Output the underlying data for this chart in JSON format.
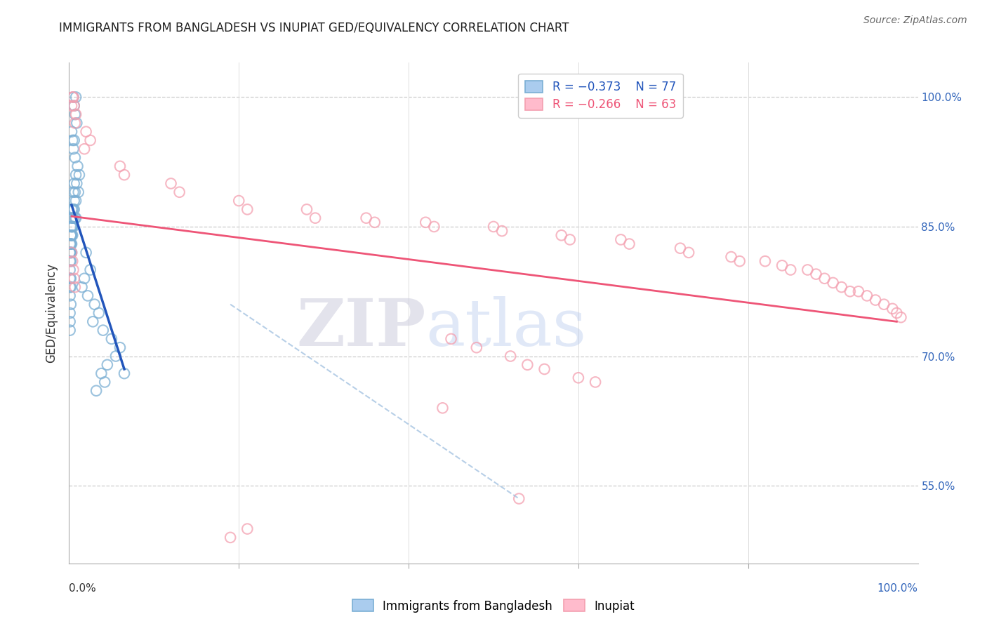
{
  "title": "IMMIGRANTS FROM BANGLADESH VS INUPIAT GED/EQUIVALENCY CORRELATION CHART",
  "source": "Source: ZipAtlas.com",
  "ylabel": "GED/Equivalency",
  "xlim": [
    0.0,
    1.0
  ],
  "ylim": [
    0.46,
    1.04
  ],
  "yticks": [
    0.55,
    0.7,
    0.85,
    1.0
  ],
  "ytick_labels": [
    "55.0%",
    "70.0%",
    "85.0%",
    "100.0%"
  ],
  "legend_blue_R": "R = −0.373",
  "legend_blue_N": "N = 77",
  "legend_pink_R": "R = −0.266",
  "legend_pink_N": "N = 63",
  "blue_color": "#7BAFD4",
  "pink_color": "#F4A0B0",
  "blue_line_color": "#2255BB",
  "pink_line_color": "#EE5577",
  "watermark_zip": "ZIP",
  "watermark_atlas": "atlas",
  "background_color": "#FFFFFF",
  "blue_scatter_x": [
    0.005,
    0.008,
    0.006,
    0.007,
    0.009,
    0.003,
    0.004,
    0.006,
    0.005,
    0.007,
    0.01,
    0.012,
    0.008,
    0.006,
    0.009,
    0.011,
    0.007,
    0.005,
    0.006,
    0.008,
    0.003,
    0.004,
    0.005,
    0.006,
    0.007,
    0.008,
    0.003,
    0.004,
    0.005,
    0.003,
    0.002,
    0.003,
    0.004,
    0.005,
    0.003,
    0.002,
    0.003,
    0.004,
    0.002,
    0.003,
    0.002,
    0.001,
    0.002,
    0.003,
    0.002,
    0.001,
    0.002,
    0.001,
    0.002,
    0.001,
    0.001,
    0.002,
    0.001,
    0.002,
    0.001,
    0.001,
    0.002,
    0.001,
    0.001,
    0.001,
    0.02,
    0.025,
    0.018,
    0.015,
    0.022,
    0.03,
    0.035,
    0.028,
    0.04,
    0.05,
    0.06,
    0.055,
    0.045,
    0.038,
    0.042,
    0.032,
    0.065
  ],
  "blue_scatter_y": [
    1.0,
    1.0,
    0.99,
    0.98,
    0.97,
    0.96,
    0.95,
    0.95,
    0.94,
    0.93,
    0.92,
    0.91,
    0.91,
    0.9,
    0.9,
    0.89,
    0.89,
    0.89,
    0.88,
    0.88,
    0.87,
    0.87,
    0.87,
    0.87,
    0.86,
    0.86,
    0.86,
    0.86,
    0.86,
    0.85,
    0.85,
    0.85,
    0.85,
    0.85,
    0.84,
    0.84,
    0.84,
    0.84,
    0.84,
    0.83,
    0.83,
    0.83,
    0.83,
    0.82,
    0.82,
    0.82,
    0.82,
    0.82,
    0.81,
    0.81,
    0.8,
    0.79,
    0.79,
    0.78,
    0.78,
    0.77,
    0.76,
    0.75,
    0.74,
    0.73,
    0.82,
    0.8,
    0.79,
    0.78,
    0.77,
    0.76,
    0.75,
    0.74,
    0.73,
    0.72,
    0.71,
    0.7,
    0.69,
    0.68,
    0.67,
    0.66,
    0.68
  ],
  "pink_scatter_x": [
    0.003,
    0.005,
    0.004,
    0.006,
    0.008,
    0.007,
    0.02,
    0.025,
    0.018,
    0.06,
    0.065,
    0.12,
    0.13,
    0.2,
    0.21,
    0.28,
    0.29,
    0.35,
    0.36,
    0.42,
    0.43,
    0.5,
    0.51,
    0.58,
    0.59,
    0.65,
    0.66,
    0.72,
    0.73,
    0.78,
    0.79,
    0.82,
    0.84,
    0.85,
    0.87,
    0.88,
    0.89,
    0.9,
    0.91,
    0.92,
    0.93,
    0.94,
    0.95,
    0.96,
    0.97,
    0.975,
    0.98,
    0.44,
    0.53,
    0.19,
    0.21,
    0.003,
    0.004,
    0.005,
    0.006,
    0.007,
    0.45,
    0.48,
    0.52,
    0.54,
    0.56,
    0.6,
    0.62
  ],
  "pink_scatter_y": [
    0.99,
    1.0,
    1.0,
    0.99,
    0.98,
    0.97,
    0.96,
    0.95,
    0.94,
    0.92,
    0.91,
    0.9,
    0.89,
    0.88,
    0.87,
    0.87,
    0.86,
    0.86,
    0.855,
    0.855,
    0.85,
    0.85,
    0.845,
    0.84,
    0.835,
    0.835,
    0.83,
    0.825,
    0.82,
    0.815,
    0.81,
    0.81,
    0.805,
    0.8,
    0.8,
    0.795,
    0.79,
    0.785,
    0.78,
    0.775,
    0.775,
    0.77,
    0.765,
    0.76,
    0.755,
    0.75,
    0.745,
    0.64,
    0.535,
    0.49,
    0.5,
    0.82,
    0.81,
    0.8,
    0.79,
    0.78,
    0.72,
    0.71,
    0.7,
    0.69,
    0.685,
    0.675,
    0.67
  ],
  "blue_trend_x": [
    0.003,
    0.065
  ],
  "blue_trend_y": [
    0.875,
    0.685
  ],
  "pink_trend_x": [
    0.003,
    0.975
  ],
  "pink_trend_y": [
    0.862,
    0.74
  ],
  "dashed_trend_x": [
    0.19,
    0.53
  ],
  "dashed_trend_y": [
    0.76,
    0.535
  ]
}
